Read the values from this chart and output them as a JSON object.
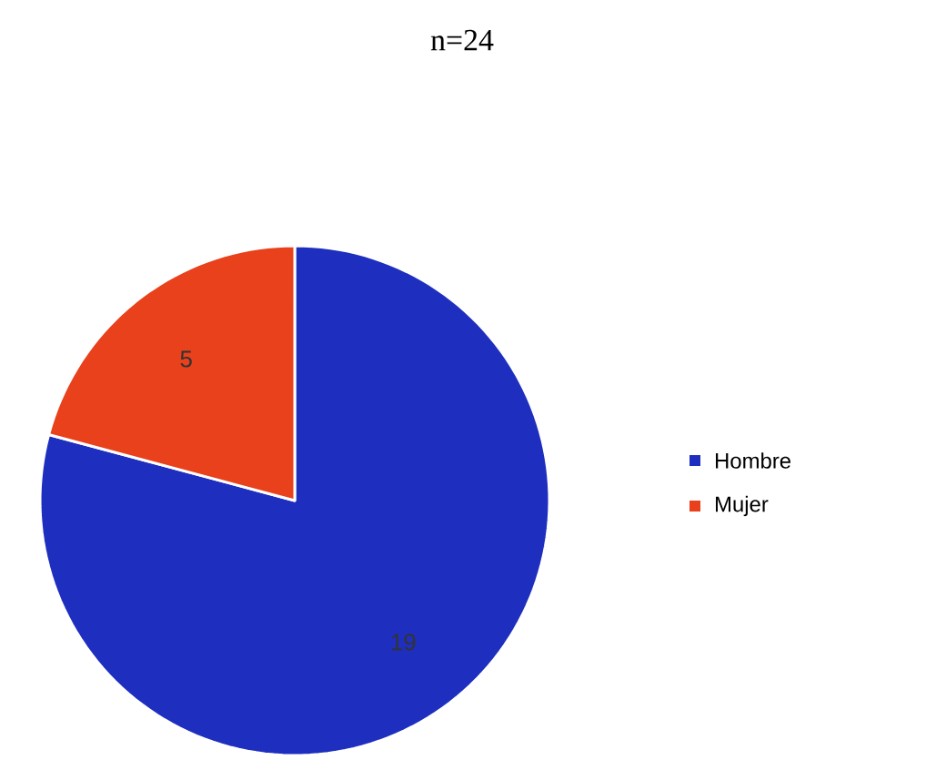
{
  "chart_data": {
    "type": "pie",
    "title": "n=24",
    "categories": [
      "Hombre",
      "Mujer"
    ],
    "values": [
      19,
      5
    ],
    "colors": [
      "#1e2fbf",
      "#e8411c"
    ],
    "data_labels": true,
    "legend": "right"
  }
}
